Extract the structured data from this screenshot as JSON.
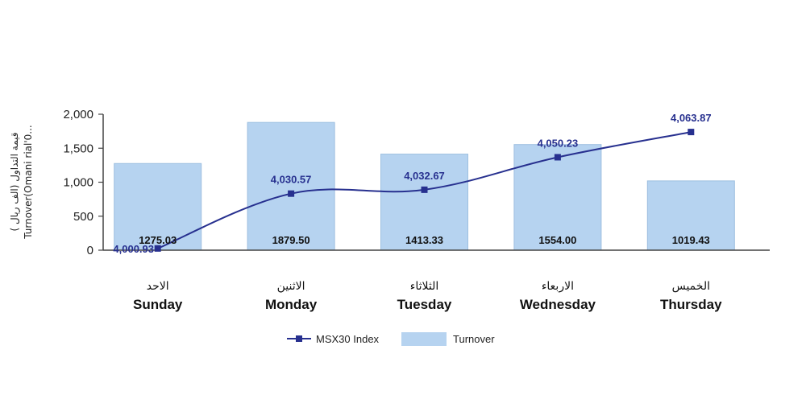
{
  "colors": {
    "bar": "#b6d3f0",
    "bar_stroke": "#9dbfe0",
    "line": "#27308f",
    "axis": "#444444"
  },
  "chart_data": {
    "type": "bar",
    "title": "",
    "ylabel_lines": [
      "( قيمة التداول (الف ريال",
      "Turnover(Omani rial'0..."
    ],
    "ylim": [
      0,
      2000
    ],
    "yticks": [
      "0",
      "500",
      "1,000",
      "1,500",
      "2,000"
    ],
    "ytick_values": [
      0,
      500,
      1000,
      1500,
      2000
    ],
    "categories": [
      {
        "ar": "الاحد",
        "en": "Sunday"
      },
      {
        "ar": "الاثنين",
        "en": "Monday"
      },
      {
        "ar": "الثلاثاء",
        "en": "Tuesday"
      },
      {
        "ar": "الاربعاء",
        "en": "Wednesday"
      },
      {
        "ar": "الخميس",
        "en": "Thursday"
      }
    ],
    "series": [
      {
        "name": "Turnover",
        "type": "bar",
        "values": [
          1275.03,
          1879.5,
          1413.33,
          1554.0,
          1019.43
        ],
        "labels": [
          "1275.03",
          "1879.50",
          "1413.33",
          "1554.00",
          "1019.43"
        ]
      },
      {
        "name": "MSX30 Index",
        "type": "line",
        "values": [
          4000.93,
          4030.57,
          4032.67,
          4050.23,
          4063.87
        ],
        "labels": [
          "4,000.93",
          "4,030.57",
          "4,032.67",
          "4,050.23",
          "4,063.87"
        ]
      }
    ],
    "legend": {
      "position": "bottom"
    },
    "grid": false
  }
}
